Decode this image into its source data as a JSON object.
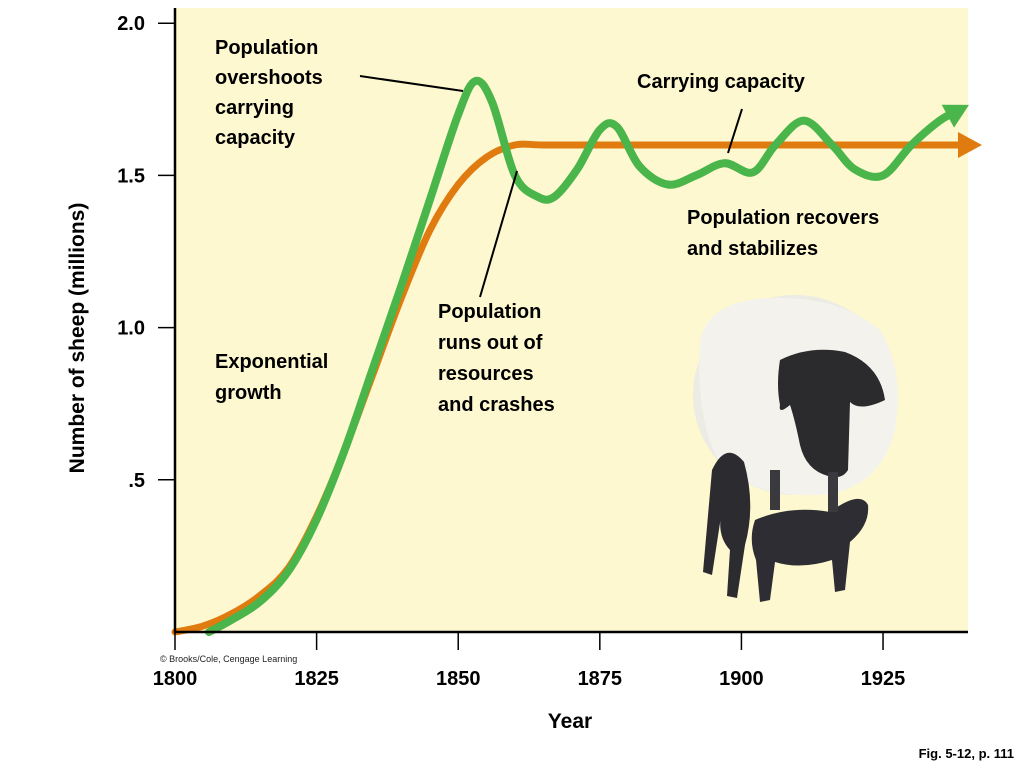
{
  "chart_data": {
    "type": "line",
    "xlabel": "Year",
    "ylabel": "Number of sheep (millions)",
    "xlim": [
      1800,
      1940
    ],
    "ylim": [
      0,
      2.05
    ],
    "x_ticks": [
      1800,
      1825,
      1850,
      1875,
      1900,
      1925
    ],
    "x_tick_labels": [
      "1800",
      "1825",
      "1850",
      "1875",
      "1900",
      "1925"
    ],
    "y_ticks": [
      0.5,
      1.0,
      1.5,
      2.0
    ],
    "y_tick_labels": [
      ".5",
      "1.0",
      "1.5",
      "2.0"
    ],
    "grid": false,
    "background": "#fdf8cf",
    "series": [
      {
        "name": "Carrying capacity",
        "color": "#e07b10",
        "x": [
          1800,
          1805,
          1810,
          1815,
          1820,
          1825,
          1830,
          1835,
          1840,
          1845,
          1850,
          1855,
          1860,
          1865,
          1875,
          1900,
          1925,
          1940
        ],
        "values": [
          0,
          0.02,
          0.06,
          0.12,
          0.21,
          0.38,
          0.6,
          0.85,
          1.1,
          1.32,
          1.47,
          1.56,
          1.6,
          1.6,
          1.6,
          1.6,
          1.6,
          1.6
        ]
      },
      {
        "name": "Population",
        "color": "#4ab54a",
        "x": [
          1806,
          1810,
          1815,
          1820,
          1825,
          1830,
          1835,
          1840,
          1845,
          1850,
          1853,
          1856,
          1860,
          1864,
          1867,
          1871,
          1875,
          1878,
          1882,
          1887,
          1892,
          1897,
          1902,
          1906,
          1911,
          1916,
          1920,
          1925,
          1930,
          1935,
          1938
        ],
        "values": [
          0,
          0.04,
          0.1,
          0.2,
          0.37,
          0.6,
          0.87,
          1.14,
          1.42,
          1.7,
          1.81,
          1.74,
          1.5,
          1.43,
          1.43,
          1.52,
          1.65,
          1.66,
          1.53,
          1.47,
          1.5,
          1.54,
          1.51,
          1.6,
          1.68,
          1.6,
          1.52,
          1.5,
          1.6,
          1.68,
          1.71
        ]
      }
    ],
    "annotations": [
      {
        "text": [
          "Population",
          "overshoots",
          "carrying",
          "capacity"
        ]
      },
      {
        "text": [
          "Carrying capacity"
        ]
      },
      {
        "text": [
          "Population recovers",
          "and stabilizes"
        ]
      },
      {
        "text": [
          "Population",
          "runs out of",
          "resources",
          "and crashes"
        ]
      },
      {
        "text": [
          "Exponential",
          "growth"
        ]
      }
    ],
    "credit": "© Brooks/Cole, Cengage Learning",
    "figure_ref": "Fig. 5-12, p. 111"
  },
  "image": {
    "icon": "sheep-with-lambs-icon"
  }
}
